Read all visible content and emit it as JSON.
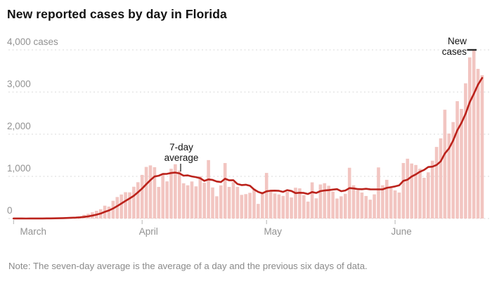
{
  "page": {
    "title": "New reported cases by day in Florida",
    "note": "Note: The seven-day average is the average of a day and the previous six days of data."
  },
  "annotations": {
    "avg_line_label": "7-day average",
    "new_cases_label": "New cases"
  },
  "colors": {
    "bar": "#f2c5c1",
    "line": "#bb221b",
    "grid": "#dadada",
    "axis_text": "#929292",
    "tick": "#b5b5b5",
    "title_text": "#121212",
    "note_text": "#8a8a8a",
    "marker": "#2b2b2b"
  },
  "chart_data": {
    "type": "bar",
    "title": "New reported cases by day in Florida",
    "xlabel": "",
    "ylabel": "cases",
    "ylim": [
      0,
      4000
    ],
    "grid": "dashed horizontal gridlines",
    "legend_position": "none",
    "yticks": [
      {
        "value": 4000,
        "label": "4,000 cases"
      },
      {
        "value": 3000,
        "label": "3,000"
      },
      {
        "value": 2000,
        "label": "2,000"
      },
      {
        "value": 1000,
        "label": "1,000"
      },
      {
        "value": 0,
        "label": "0"
      }
    ],
    "months": [
      {
        "label": "March",
        "days": 31
      },
      {
        "label": "April",
        "days": 30
      },
      {
        "label": "May",
        "days": 31
      },
      {
        "label": "June",
        "days": 22
      }
    ],
    "series": [
      {
        "name": "New cases",
        "type": "bar",
        "values": [
          2,
          0,
          1,
          0,
          2,
          3,
          6,
          3,
          4,
          5,
          7,
          20,
          25,
          27,
          39,
          24,
          51,
          88,
          112,
          148,
          183,
          221,
          305,
          282,
          421,
          510,
          570,
          625,
          621,
          754,
          861,
          1035,
          1224,
          1260,
          1217,
          750,
          1049,
          881,
          1181,
          1288,
          1137,
          836,
          788,
          879,
          763,
          1004,
          848,
          1386,
          737,
          528,
          786,
          1316,
          750,
          866,
          751,
          561,
          579,
          610,
          708,
          347,
          631,
          1082,
          658,
          594,
          571,
          537,
          636,
          500,
          731,
          716,
          555,
          402,
          858,
          479,
          808,
          838,
          777,
          640,
          475,
          527,
          587,
          1204,
          788,
          673,
          616,
          535,
          447,
          573,
          1212,
          789,
          918,
          728,
          667,
          617,
          1317,
          1419,
          1305,
          1270,
          1180,
          966,
          1096,
          1371,
          1698,
          1902,
          2581,
          2016,
          2288,
          2783,
          2600,
          3207,
          3822,
          3988,
          3550,
          3400
        ]
      },
      {
        "name": "7-day average",
        "type": "line",
        "derivation": "average of a day and the previous six days of the bar series"
      }
    ],
    "peak_bar_value": 3988
  }
}
